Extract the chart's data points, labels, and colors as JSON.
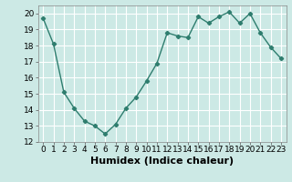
{
  "x": [
    0,
    1,
    2,
    3,
    4,
    5,
    6,
    7,
    8,
    9,
    10,
    11,
    12,
    13,
    14,
    15,
    16,
    17,
    18,
    19,
    20,
    21,
    22,
    23
  ],
  "y": [
    19.7,
    18.1,
    15.1,
    14.1,
    13.3,
    13.0,
    12.5,
    13.1,
    14.1,
    14.8,
    15.8,
    16.9,
    18.8,
    18.6,
    18.5,
    19.8,
    19.4,
    19.8,
    20.1,
    19.4,
    20.0,
    18.8,
    17.9,
    17.2
  ],
  "line_color": "#2e7d6e",
  "marker": "D",
  "marker_size": 2.2,
  "background_color": "#cce9e5",
  "grid_color": "#ffffff",
  "xlabel": "Humidex (Indice chaleur)",
  "ylim": [
    12,
    20.5
  ],
  "yticks": [
    12,
    13,
    14,
    15,
    16,
    17,
    18,
    19,
    20
  ],
  "xticks": [
    0,
    1,
    2,
    3,
    4,
    5,
    6,
    7,
    8,
    9,
    10,
    11,
    12,
    13,
    14,
    15,
    16,
    17,
    18,
    19,
    20,
    21,
    22,
    23
  ],
  "tick_fontsize": 6.5,
  "xlabel_fontsize": 8,
  "line_width": 1.0
}
